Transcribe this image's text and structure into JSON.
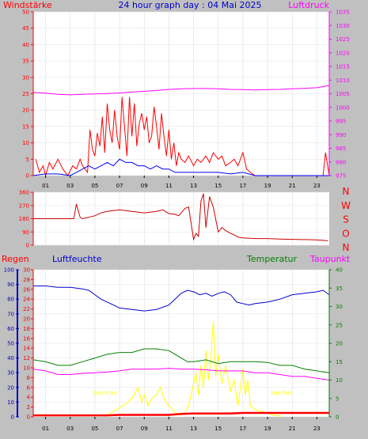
{
  "header": {
    "left_label": "Windstärke",
    "title": "24 hour graph day : 04 Mai 2025",
    "right_label": "Luftdruck"
  },
  "x_ticks": [
    "01",
    "03",
    "05",
    "07",
    "09",
    "11",
    "13",
    "15",
    "17",
    "19",
    "21",
    "23"
  ],
  "x_tick_hours": [
    1,
    3,
    5,
    7,
    9,
    11,
    13,
    15,
    17,
    19,
    21,
    23
  ],
  "colors": {
    "background": "#c0c0c0",
    "plot_bg": "#ffffff",
    "wind": "#ff0000",
    "wind_avg": "#0000ff",
    "wind_dir": "#cc0000",
    "pressure": "#ff00ff",
    "humidity": "#0000cc",
    "temperature": "#008000",
    "dewpoint": "#ff00ff",
    "solar": "#ffff00",
    "rain": "#ff0000",
    "text_red": "#ff0000",
    "text_blue": "#0000cc",
    "text_green": "#008000",
    "text_magenta": "#ff00ff"
  },
  "chart_data": [
    {
      "id": "wind_pressure",
      "type": "line",
      "left_axis": {
        "label": "Windstärke",
        "ticks": [
          0,
          5,
          10,
          15,
          20,
          25,
          30,
          35,
          40,
          45,
          50
        ],
        "range": [
          0,
          50
        ]
      },
      "right_axis": {
        "label": "Luftdruck",
        "ticks": [
          975,
          980,
          985,
          990,
          995,
          1000,
          1005,
          1010,
          1015,
          1020,
          1025,
          1030,
          1035
        ],
        "range": [
          975,
          1035
        ]
      },
      "x_range": [
        0,
        24
      ],
      "series": [
        {
          "key": "pressure",
          "axis": "right",
          "x": [
            0,
            1,
            2,
            3,
            4,
            5,
            6,
            7,
            8,
            9,
            10,
            11,
            12,
            13,
            14,
            15,
            16,
            17,
            18,
            19,
            20,
            21,
            22,
            23,
            24
          ],
          "y": [
            1005.5,
            1005.2,
            1004.8,
            1004.6,
            1004.8,
            1004.9,
            1005.1,
            1005.3,
            1005.6,
            1005.9,
            1006.2,
            1006.6,
            1006.8,
            1006.9,
            1006.9,
            1006.8,
            1006.6,
            1006.5,
            1006.4,
            1006.5,
            1006.6,
            1006.8,
            1007.0,
            1007.2,
            1008.0
          ]
        },
        {
          "key": "wind_gust",
          "axis": "left",
          "x": [
            0.2,
            0.5,
            0.8,
            1.0,
            1.3,
            1.6,
            2.0,
            2.4,
            2.8,
            3.2,
            3.5,
            3.8,
            4.0,
            4.2,
            4.4,
            4.6,
            4.8,
            5.0,
            5.2,
            5.4,
            5.6,
            5.8,
            6.0,
            6.2,
            6.4,
            6.6,
            6.8,
            7.0,
            7.2,
            7.4,
            7.6,
            7.8,
            8.0,
            8.2,
            8.4,
            8.6,
            8.8,
            9.0,
            9.2,
            9.4,
            9.6,
            9.8,
            10.0,
            10.2,
            10.4,
            10.6,
            10.8,
            11.0,
            11.2,
            11.4,
            11.6,
            11.8,
            12.0,
            12.3,
            12.6,
            13.0,
            13.3,
            13.6,
            14.0,
            14.3,
            14.6,
            15.0,
            15.3,
            15.6,
            16.0,
            16.3,
            16.6,
            17.0,
            17.3,
            17.6,
            18.0,
            19.0,
            20.0,
            21.0,
            22.0,
            23.0,
            23.5,
            23.7,
            24.0
          ],
          "y": [
            5,
            1,
            3,
            0,
            4,
            2,
            5,
            2,
            0,
            3,
            2,
            5,
            3,
            2,
            1,
            14,
            8,
            6,
            13,
            9,
            18,
            7,
            22,
            14,
            10,
            20,
            12,
            8,
            24,
            15,
            6,
            24,
            12,
            22,
            9,
            16,
            19,
            14,
            18,
            10,
            12,
            21,
            15,
            8,
            19,
            12,
            6,
            14,
            5,
            10,
            3,
            7,
            5,
            4,
            6,
            3,
            5,
            4,
            6,
            4,
            7,
            5,
            6,
            3,
            4,
            5,
            3,
            7,
            2,
            1,
            0,
            0,
            0,
            0,
            0,
            0,
            0,
            7,
            0
          ]
        },
        {
          "key": "wind_avg",
          "axis": "left",
          "x": [
            0,
            1,
            2,
            3,
            3.5,
            4,
            4.5,
            5,
            5.5,
            6,
            6.5,
            7,
            7.5,
            8,
            8.5,
            9,
            9.5,
            10,
            10.5,
            11,
            11.5,
            12,
            13,
            14,
            15,
            16,
            17,
            18,
            19,
            20,
            21,
            22,
            23,
            24
          ],
          "y": [
            0,
            0.5,
            0.5,
            0,
            1,
            2,
            3,
            2,
            3,
            4,
            3,
            5,
            4,
            4,
            3,
            3,
            2,
            3,
            2,
            2,
            1,
            1,
            1,
            1,
            1,
            0.5,
            1,
            0,
            0,
            0,
            0,
            0,
            0,
            0
          ]
        }
      ]
    },
    {
      "id": "wind_direction",
      "type": "line",
      "left_axis": {
        "ticks": [
          0,
          90,
          180,
          270,
          360
        ],
        "range": [
          0,
          360
        ]
      },
      "right_axis": {
        "ticks": [
          "N",
          "W",
          "S",
          "O",
          "N"
        ]
      },
      "x_range": [
        0,
        24
      ],
      "series": [
        {
          "key": "wind_dir",
          "x": [
            0,
            3.3,
            3.5,
            3.8,
            4,
            5,
            5.5,
            6,
            7,
            8,
            9,
            10,
            10.5,
            11,
            11.5,
            11.8,
            12,
            12.3,
            12.6,
            13,
            13.2,
            13.4,
            13.6,
            13.8,
            14,
            14.3,
            14.6,
            15,
            15.3,
            15.6,
            16,
            16.3,
            16.6,
            17,
            18,
            19,
            20,
            21,
            22,
            23,
            23.9
          ],
          "y": [
            180,
            180,
            280,
            190,
            180,
            200,
            220,
            230,
            240,
            230,
            220,
            230,
            240,
            215,
            210,
            200,
            220,
            250,
            260,
            40,
            80,
            60,
            300,
            350,
            120,
            330,
            260,
            90,
            120,
            100,
            80,
            70,
            55,
            50,
            45,
            45,
            42,
            40,
            38,
            36,
            30
          ]
        }
      ]
    },
    {
      "id": "temp_humidity_rain",
      "type": "line",
      "axes": {
        "regen": {
          "label": "Regen",
          "ticks": [
            0,
            2,
            4,
            6,
            8,
            10,
            12,
            14,
            16,
            18,
            20,
            22,
            24,
            26,
            28,
            30
          ],
          "range": [
            0,
            30
          ]
        },
        "luftfeuchte": {
          "label": "Luftfeuchte",
          "ticks": [
            0,
            10,
            20,
            30,
            40,
            50,
            60,
            70,
            80,
            90,
            100
          ],
          "range": [
            0,
            100
          ]
        },
        "temperatur": {
          "label": "Temperatur",
          "ticks": [
            0,
            5,
            10,
            15,
            20,
            25,
            30,
            35,
            40
          ],
          "range": [
            0,
            40
          ]
        },
        "taupunkt": {
          "label": "Taupunkt"
        }
      },
      "x_range": [
        0,
        24
      ],
      "annotations": [
        {
          "text": "Sun Rise",
          "hour": 5.8
        },
        {
          "text": "Sun Set",
          "hour": 20.1
        }
      ],
      "series": [
        {
          "key": "humidity",
          "axis": "luftfeuchte",
          "x": [
            0,
            1,
            2,
            3,
            4,
            4.5,
            5,
            5.5,
            6,
            6.5,
            7,
            8,
            9,
            10,
            11,
            11.5,
            12,
            12.5,
            13,
            13.5,
            14,
            14.5,
            15,
            15.5,
            16,
            16.5,
            17,
            17.5,
            18,
            19,
            20,
            21,
            22,
            23,
            23.5,
            24
          ],
          "y": [
            89,
            89,
            88,
            88,
            87,
            86,
            83,
            80,
            78,
            76,
            74,
            73,
            72,
            73,
            76,
            80,
            84,
            86,
            85,
            83,
            84,
            82,
            84,
            85,
            83,
            78,
            77,
            76,
            77,
            78,
            80,
            83,
            84,
            85,
            86,
            83
          ]
        },
        {
          "key": "temperature",
          "axis": "temperatur",
          "x": [
            0,
            1,
            2,
            3,
            4,
            5,
            6,
            7,
            8,
            9,
            10,
            11,
            11.5,
            12,
            12.5,
            13,
            14,
            15,
            16,
            17,
            18,
            19,
            20,
            21,
            22,
            23,
            24
          ],
          "y": [
            15.5,
            15,
            14,
            14,
            15,
            16,
            17,
            17.5,
            17.5,
            18.5,
            18.5,
            18,
            17,
            16,
            15,
            15,
            15.5,
            14.5,
            15,
            15,
            15,
            14.8,
            14,
            14,
            13,
            12.5,
            12
          ]
        },
        {
          "key": "dewpoint",
          "axis": "temperatur",
          "x": [
            0,
            1,
            2,
            3,
            4,
            5,
            6,
            7,
            8,
            9,
            10,
            11,
            12,
            13,
            14,
            15,
            16,
            17,
            18,
            19,
            20,
            21,
            22,
            23,
            24
          ],
          "y": [
            13,
            12.5,
            11.5,
            11.5,
            11.8,
            12,
            12.2,
            12.5,
            13,
            13,
            13,
            13.2,
            13,
            13,
            12.8,
            12.5,
            12.5,
            12.5,
            12,
            12,
            11.5,
            11,
            11,
            10.5,
            10
          ]
        },
        {
          "key": "solar",
          "axis": "temperatur",
          "x": [
            5.8,
            6,
            6.5,
            7,
            7.5,
            8,
            8.5,
            8.8,
            9,
            9.3,
            9.6,
            10,
            10.3,
            10.6,
            11,
            11.3,
            11.6,
            12,
            12.3,
            12.6,
            13,
            13.2,
            13.4,
            13.6,
            13.8,
            14,
            14.2,
            14.4,
            14.6,
            14.8,
            15,
            15.3,
            15.6,
            16,
            16.3,
            16.6,
            17,
            17.2,
            17.4,
            17.6,
            18,
            18.5,
            19,
            19.5,
            20,
            20.1
          ],
          "y": [
            0,
            0.5,
            1.5,
            2.5,
            3.5,
            5,
            8,
            4,
            6,
            3,
            5,
            6,
            8,
            5,
            3,
            2,
            1,
            0.5,
            1,
            3,
            9,
            12,
            6,
            14,
            8,
            18,
            10,
            16,
            26,
            11,
            17,
            9,
            14,
            7,
            10,
            3,
            13,
            6,
            10,
            3,
            2,
            1.5,
            1,
            0.5,
            0.3,
            0
          ]
        },
        {
          "key": "rain",
          "axis": "regen",
          "x": [
            0,
            6,
            7,
            8,
            10,
            11,
            12,
            13,
            14,
            15,
            16,
            17,
            18,
            20,
            22,
            24
          ],
          "y": [
            0.3,
            0.3,
            0.4,
            0.4,
            0.4,
            0.4,
            0.6,
            0.7,
            0.7,
            0.7,
            0.7,
            0.8,
            0.8,
            0.8,
            0.8,
            0.8
          ]
        }
      ]
    }
  ]
}
